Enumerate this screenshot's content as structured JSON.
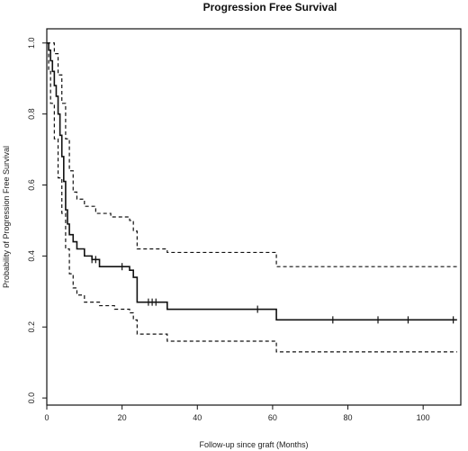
{
  "chart_data": {
    "type": "line",
    "title": "Progression Free Survival",
    "xlabel": "Follow-up since graft (Months)",
    "ylabel": "Probability of Progression Free Survival",
    "xlim": [
      0,
      110
    ],
    "ylim": [
      -0.02,
      1.04
    ],
    "xticks": [
      0,
      20,
      40,
      60,
      80,
      100
    ],
    "xtick_labels": [
      "0",
      "20",
      "40",
      "60",
      "80",
      "100"
    ],
    "yticks": [
      0.0,
      0.2,
      0.4,
      0.6,
      0.8,
      1.0
    ],
    "ytick_labels": [
      "0.0",
      "0.2",
      "0.4",
      "0.6",
      "0.8",
      "1.0"
    ],
    "grid": false,
    "series": [
      {
        "style": "solid",
        "color": "#111111",
        "step": true,
        "points": [
          [
            0,
            1.0
          ],
          [
            0.5,
            0.98
          ],
          [
            1,
            0.95
          ],
          [
            1.5,
            0.92
          ],
          [
            2,
            0.88
          ],
          [
            2.5,
            0.85
          ],
          [
            3,
            0.8
          ],
          [
            3.5,
            0.74
          ],
          [
            4,
            0.68
          ],
          [
            4.5,
            0.61
          ],
          [
            5,
            0.53
          ],
          [
            5.5,
            0.49
          ],
          [
            6,
            0.46
          ],
          [
            7,
            0.44
          ],
          [
            8,
            0.42
          ],
          [
            10,
            0.4
          ],
          [
            12,
            0.39
          ],
          [
            14,
            0.37
          ],
          [
            22,
            0.36
          ],
          [
            23,
            0.34
          ],
          [
            24,
            0.27
          ],
          [
            32,
            0.25
          ],
          [
            61,
            0.22
          ],
          [
            109,
            0.22
          ]
        ],
        "censor_x": [
          12,
          13,
          20,
          27,
          28,
          29,
          56,
          76,
          88,
          96,
          108
        ]
      },
      {
        "style": "dashed",
        "color": "#111111",
        "step": true,
        "points": [
          [
            0,
            1.0
          ],
          [
            1,
            1.0
          ],
          [
            2,
            0.97
          ],
          [
            3,
            0.91
          ],
          [
            4,
            0.83
          ],
          [
            5,
            0.73
          ],
          [
            6,
            0.64
          ],
          [
            7,
            0.58
          ],
          [
            8,
            0.56
          ],
          [
            10,
            0.54
          ],
          [
            13,
            0.52
          ],
          [
            17,
            0.51
          ],
          [
            22,
            0.5
          ],
          [
            23,
            0.47
          ],
          [
            24,
            0.42
          ],
          [
            32,
            0.41
          ],
          [
            61,
            0.37
          ],
          [
            109,
            0.37
          ]
        ]
      },
      {
        "style": "dashed",
        "color": "#111111",
        "step": true,
        "points": [
          [
            0,
            1.0
          ],
          [
            0.5,
            0.92
          ],
          [
            1,
            0.83
          ],
          [
            2,
            0.73
          ],
          [
            3,
            0.62
          ],
          [
            4,
            0.52
          ],
          [
            5,
            0.42
          ],
          [
            6,
            0.35
          ],
          [
            7,
            0.31
          ],
          [
            8,
            0.29
          ],
          [
            10,
            0.27
          ],
          [
            14,
            0.26
          ],
          [
            18,
            0.25
          ],
          [
            22,
            0.24
          ],
          [
            23,
            0.22
          ],
          [
            24,
            0.18
          ],
          [
            32,
            0.16
          ],
          [
            61,
            0.13
          ],
          [
            109,
            0.13
          ]
        ]
      }
    ]
  }
}
